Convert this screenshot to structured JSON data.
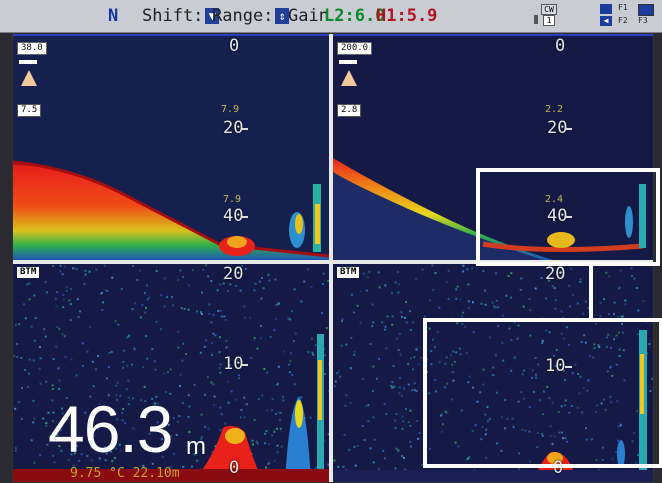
{
  "header": {
    "mode": "N",
    "shift_label": "Shift:",
    "shift_icon": "arrow-down-icon",
    "range_label": "Range:",
    "range_icon": "up-down-arrow-icon",
    "gain_label": "Gain",
    "gain_l2": "L2:6.0",
    "gain_h1": "H1:5.9",
    "cw_badge": "CW",
    "cw_value": "1",
    "f_tabs": [
      "F1",
      "F2",
      "F3"
    ]
  },
  "panels": {
    "top_left": {
      "header_value": "38.0",
      "gain_value": "7.5",
      "depths": [
        "0",
        "20",
        "40"
      ],
      "mid_labels": [
        "7.9",
        "7.9"
      ]
    },
    "top_right": {
      "header_value": "200.0",
      "gain_value": "2.8",
      "depths": [
        "0",
        "20",
        "40"
      ],
      "mid_labels": [
        "2.2",
        "2.4"
      ]
    },
    "bottom_left": {
      "tag": "BTM",
      "depths": [
        "20",
        "10",
        "0"
      ]
    },
    "bottom_right": {
      "tag": "BTM",
      "depths": [
        "20",
        "10",
        "0"
      ]
    }
  },
  "readout": {
    "depth": "46.3",
    "unit": "m",
    "status": "9.75 °C  22.10m"
  },
  "colors": {
    "screen_bg": "#141a45",
    "seabed_red": "#c8141a",
    "accent_green": "#31c43f",
    "frame": "#ffffff"
  }
}
